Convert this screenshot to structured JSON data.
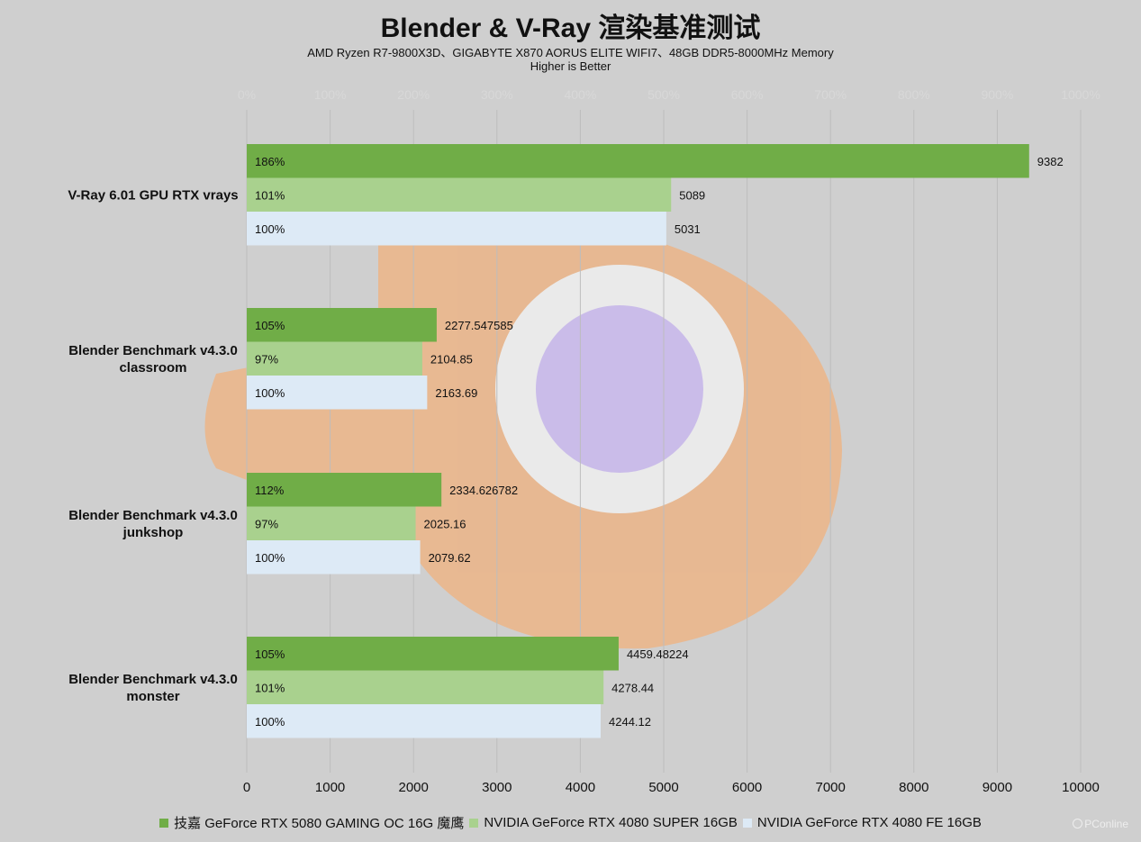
{
  "title": "Blender & V-Ray 渲染基准测试",
  "subtitle1": "AMD Ryzen R7-9800X3D、GIGABYTE X870 AORUS ELITE WIFI7、48GB DDR5-8000MHz Memory",
  "subtitle2": "Higher is Better",
  "watermark": "PConline",
  "colors": {
    "background": "#cfcfcf",
    "grid": "#bdbdbd",
    "series_1": "#70ad47",
    "series_2": "#a9d18e",
    "series_3": "#ddeaf6"
  },
  "chart_data": {
    "type": "bar",
    "orientation": "horizontal",
    "categories": [
      "V-Ray 6.01 GPU RTX vrays",
      "Blender Benchmark v4.3.0 classroom",
      "Blender Benchmark v4.3.0 junkshop",
      "Blender Benchmark v4.3.0 monster"
    ],
    "series": [
      {
        "name": "技嘉 GeForce RTX 5080 GAMING OC 16G 魔鹰",
        "values": [
          9382,
          2277.547585,
          2334.626782,
          4459.48224
        ],
        "value_labels": [
          "9382",
          "2277.547585",
          "2334.626782",
          "4459.48224"
        ],
        "percent_labels": [
          "186%",
          "105%",
          "112%",
          "105%"
        ]
      },
      {
        "name": "NVIDIA GeForce RTX 4080 SUPER 16GB",
        "values": [
          5089,
          2104.85,
          2025.16,
          4278.44
        ],
        "value_labels": [
          "5089",
          "2104.85",
          "2025.16",
          "4278.44"
        ],
        "percent_labels": [
          "101%",
          "97%",
          "97%",
          "101%"
        ]
      },
      {
        "name": "NVIDIA GeForce RTX 4080 FE 16GB",
        "values": [
          5031,
          2163.69,
          2079.62,
          4244.12
        ],
        "value_labels": [
          "5031",
          "2163.69",
          "2079.62",
          "4244.12"
        ],
        "percent_labels": [
          "100%",
          "100%",
          "100%",
          "100%"
        ]
      }
    ],
    "xlim": [
      0,
      10000
    ],
    "x_ticks": [
      "0",
      "1000",
      "2000",
      "3000",
      "4000",
      "5000",
      "6000",
      "7000",
      "8000",
      "9000",
      "10000"
    ],
    "x2_ticks": [
      "0%",
      "100%",
      "200%",
      "300%",
      "400%",
      "500%",
      "600%",
      "700%",
      "800%",
      "900%",
      "1000%"
    ],
    "grid": true,
    "legend_position": "bottom"
  }
}
